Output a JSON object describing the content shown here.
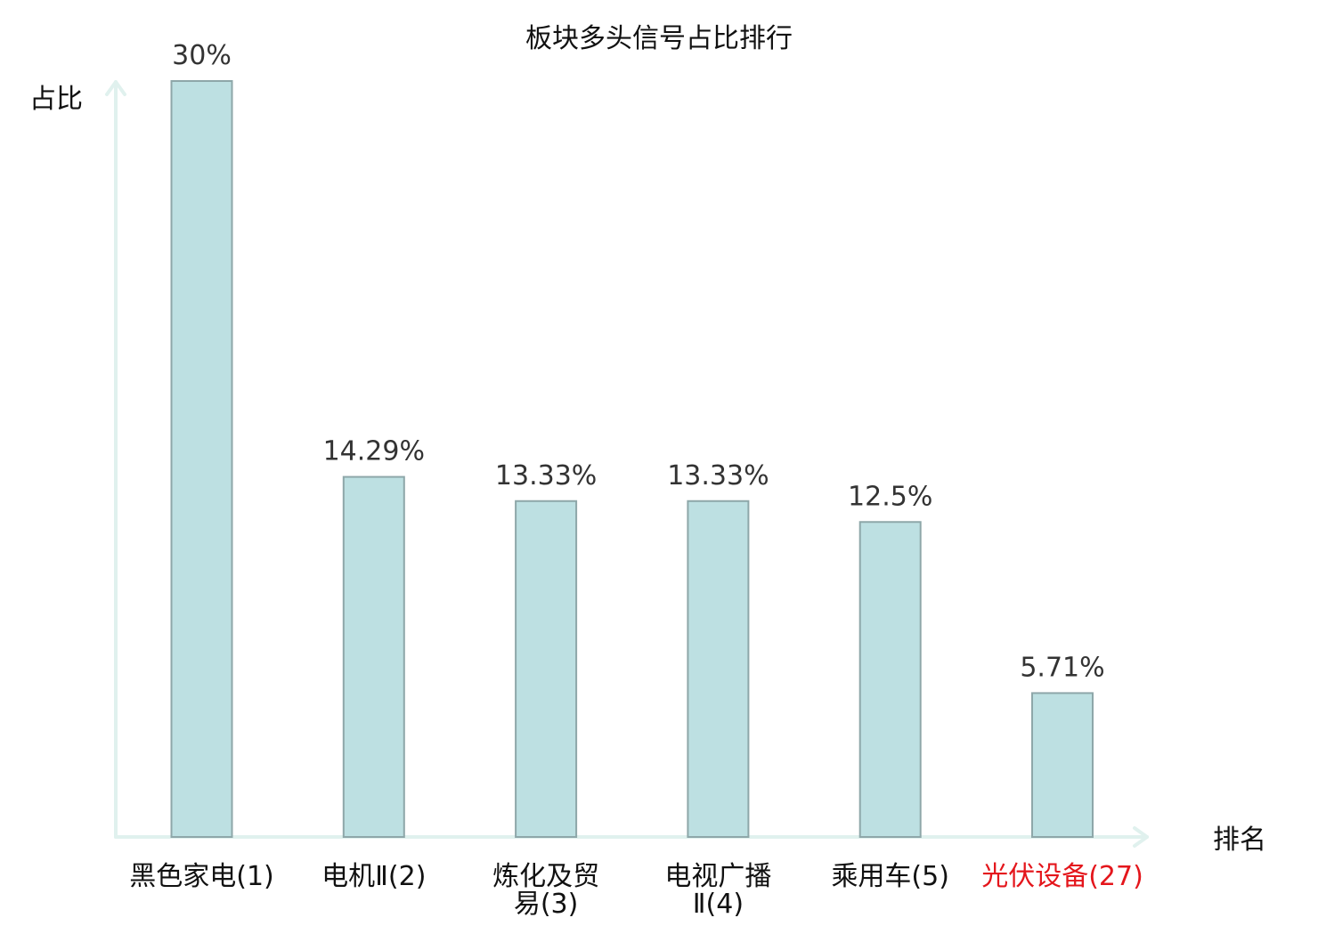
{
  "chart_data": {
    "type": "bar",
    "title": "板块多头信号占比排行",
    "ylabel": "占比",
    "xlabel": "排名",
    "categories": [
      [
        "黑色家电(1)"
      ],
      [
        "电机Ⅱ(2)"
      ],
      [
        "炼化及贸",
        "易(3)"
      ],
      [
        "电视广播",
        "Ⅱ(4)"
      ],
      [
        "乘用车(5)"
      ],
      [
        "光伏设备(27)"
      ]
    ],
    "values": [
      30,
      14.29,
      13.33,
      13.33,
      12.5,
      5.71
    ],
    "value_labels": [
      "30%",
      "14.29%",
      "13.33%",
      "13.33%",
      "12.5%",
      "5.71%"
    ],
    "highlight_index": 5,
    "colors": {
      "bar": "#bde0e2",
      "bar_edge": "#8ea7a9",
      "axis": "#e0f1ee",
      "highlight": "#e4161c"
    },
    "ylim": [
      0,
      30
    ],
    "grid": false
  }
}
